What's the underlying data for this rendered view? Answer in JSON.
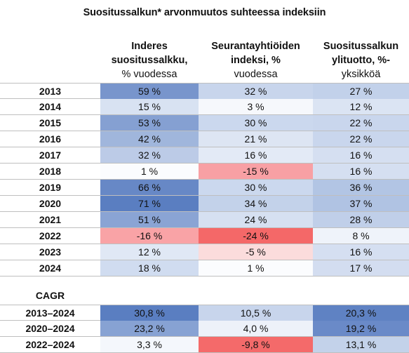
{
  "title": "Suositussalkun* arvonmuutos suhteessa indeksiin",
  "columns": [
    {
      "line1": "Inderes",
      "line2": "suositussalkku,",
      "line3": "% vuodessa"
    },
    {
      "line1": "Seurantayhtiöiden",
      "line2": "indeksi, %",
      "line3": "vuodessa"
    },
    {
      "line1": "Suositussalkun",
      "line2": "ylituotto, %-",
      "line3": "yksikköä"
    }
  ],
  "rows": [
    {
      "label": "2013",
      "v": [
        "59 %",
        "32 %",
        "27 %"
      ]
    },
    {
      "label": "2014",
      "v": [
        "15 %",
        "3 %",
        "12 %"
      ]
    },
    {
      "label": "2015",
      "v": [
        "53 %",
        "30 %",
        "22 %"
      ]
    },
    {
      "label": "2016",
      "v": [
        "42 %",
        "21 %",
        "22 %"
      ]
    },
    {
      "label": "2017",
      "v": [
        "32 %",
        "16 %",
        "16 %"
      ]
    },
    {
      "label": "2018",
      "v": [
        "1 %",
        "-15 %",
        "16 %"
      ]
    },
    {
      "label": "2019",
      "v": [
        "66 %",
        "30 %",
        "36 %"
      ]
    },
    {
      "label": "2020",
      "v": [
        "71 %",
        "34 %",
        "37 %"
      ]
    },
    {
      "label": "2021",
      "v": [
        "51 %",
        "24 %",
        "28 %"
      ]
    },
    {
      "label": "2022",
      "v": [
        "-16 %",
        "-24 %",
        "8 %"
      ]
    },
    {
      "label": "2023",
      "v": [
        "12 %",
        "-5 %",
        "16 %"
      ]
    },
    {
      "label": "2024",
      "v": [
        "18 %",
        "1 %",
        "17 %"
      ]
    }
  ],
  "cagr_label": "CAGR",
  "cagr_rows": [
    {
      "label": "2013–2024",
      "v": [
        "30,8 %",
        "10,5 %",
        "20,3 %"
      ]
    },
    {
      "label": "2020–2024",
      "v": [
        "23,2 %",
        "4,0 %",
        "19,2 %"
      ]
    },
    {
      "label": "2022–2024",
      "v": [
        "3,3 %",
        "-9,8 %",
        "13,1 %"
      ]
    }
  ],
  "colors": {
    "row_colors": [
      [
        "#7895cc",
        "#c8d5ec",
        "#c2d1ea"
      ],
      [
        "#d8e2f2",
        "#f6f8fc",
        "#dbe4f3"
      ],
      [
        "#85a0d2",
        "#cbd8ee",
        "#c9d6ed"
      ],
      [
        "#a0b6dc",
        "#dde5f3",
        "#c9d6ed"
      ],
      [
        "#bccbe7",
        "#e3eaf6",
        "#d5dff1"
      ],
      [
        "#fbfcfe",
        "#f8a0a4",
        "#d5dff1"
      ],
      [
        "#6788c6",
        "#cbd8ee",
        "#b2c5e4"
      ],
      [
        "#5a7ec1",
        "#c3d2ea",
        "#b0c3e3"
      ],
      [
        "#8aa4d4",
        "#d6e0f1",
        "#c0cfe9"
      ],
      [
        "#f9a3a6",
        "#f46868",
        "#eff3fa"
      ],
      [
        "#e0e8f5",
        "#fbdcdc",
        "#d5dff1"
      ],
      [
        "#d0dcf0",
        "#fbfcfe",
        "#d3ddf0"
      ]
    ],
    "cagr_colors": [
      [
        "#5a7ec1",
        "#c8d5ec",
        "#5f82c3"
      ],
      [
        "#87a2d3",
        "#edf1f9",
        "#6a8ac8"
      ],
      [
        "#f4f7fc",
        "#f46a6a",
        "#c3d2ea"
      ]
    ]
  }
}
